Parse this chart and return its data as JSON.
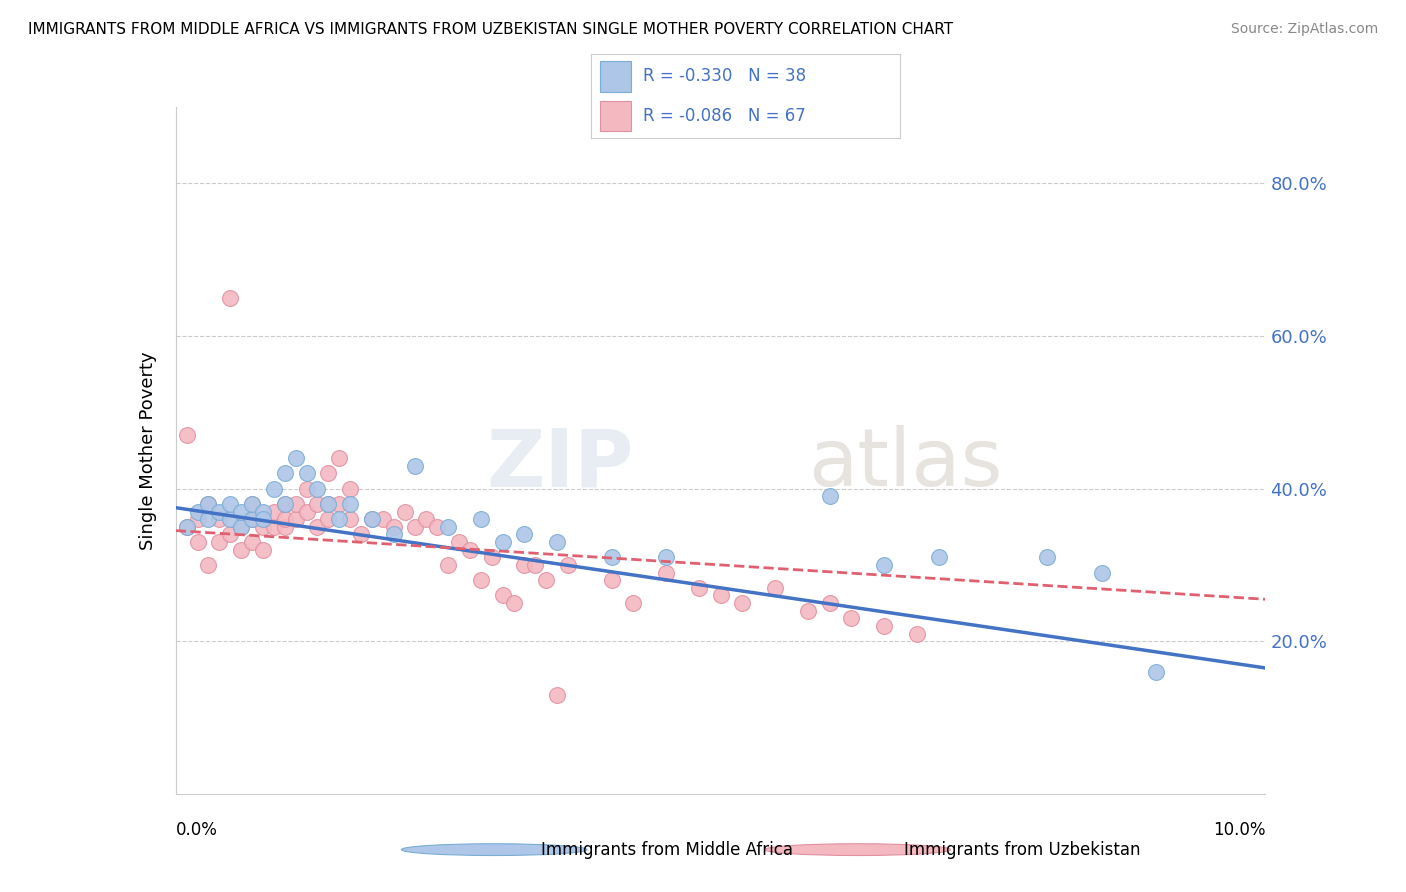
{
  "title": "IMMIGRANTS FROM MIDDLE AFRICA VS IMMIGRANTS FROM UZBEKISTAN SINGLE MOTHER POVERTY CORRELATION CHART",
  "source": "Source: ZipAtlas.com",
  "ylabel": "Single Mother Poverty",
  "y_ticks": [
    0.2,
    0.4,
    0.6,
    0.8
  ],
  "y_tick_labels": [
    "20.0%",
    "40.0%",
    "60.0%",
    "80.0%"
  ],
  "xlim": [
    0.0,
    0.1
  ],
  "ylim": [
    0.0,
    0.9
  ],
  "series1_color": "#aec6e8",
  "series1_edge": "#7aadd4",
  "series1_line": "#4472c4",
  "series2_color": "#f4b8c1",
  "series2_edge": "#e090a0",
  "series2_line": "#e06070",
  "background_color": "#ffffff",
  "grid_color": "#cccccc",
  "blue_scatter_x": [
    0.001,
    0.002,
    0.003,
    0.003,
    0.004,
    0.005,
    0.005,
    0.006,
    0.006,
    0.007,
    0.007,
    0.008,
    0.008,
    0.009,
    0.01,
    0.01,
    0.011,
    0.012,
    0.013,
    0.014,
    0.015,
    0.016,
    0.018,
    0.02,
    0.022,
    0.025,
    0.028,
    0.03,
    0.032,
    0.035,
    0.04,
    0.045,
    0.06,
    0.065,
    0.07,
    0.08,
    0.085,
    0.09
  ],
  "blue_scatter_y": [
    0.35,
    0.37,
    0.36,
    0.38,
    0.37,
    0.36,
    0.38,
    0.35,
    0.37,
    0.36,
    0.38,
    0.37,
    0.36,
    0.4,
    0.38,
    0.42,
    0.44,
    0.42,
    0.4,
    0.38,
    0.36,
    0.38,
    0.36,
    0.34,
    0.43,
    0.35,
    0.36,
    0.33,
    0.34,
    0.33,
    0.31,
    0.31,
    0.39,
    0.3,
    0.31,
    0.31,
    0.29,
    0.16
  ],
  "pink_scatter_x": [
    0.001,
    0.001,
    0.002,
    0.002,
    0.003,
    0.003,
    0.004,
    0.004,
    0.005,
    0.005,
    0.006,
    0.006,
    0.007,
    0.007,
    0.007,
    0.008,
    0.008,
    0.009,
    0.009,
    0.01,
    0.01,
    0.01,
    0.011,
    0.011,
    0.012,
    0.012,
    0.013,
    0.013,
    0.014,
    0.014,
    0.014,
    0.015,
    0.015,
    0.016,
    0.016,
    0.017,
    0.018,
    0.019,
    0.02,
    0.021,
    0.022,
    0.023,
    0.024,
    0.025,
    0.026,
    0.027,
    0.028,
    0.029,
    0.03,
    0.031,
    0.032,
    0.033,
    0.034,
    0.035,
    0.036,
    0.04,
    0.042,
    0.045,
    0.048,
    0.05,
    0.052,
    0.055,
    0.058,
    0.06,
    0.062,
    0.065,
    0.068
  ],
  "pink_scatter_y": [
    0.35,
    0.47,
    0.33,
    0.36,
    0.3,
    0.38,
    0.33,
    0.36,
    0.65,
    0.34,
    0.32,
    0.35,
    0.33,
    0.36,
    0.38,
    0.32,
    0.35,
    0.35,
    0.37,
    0.35,
    0.36,
    0.38,
    0.36,
    0.38,
    0.37,
    0.4,
    0.35,
    0.38,
    0.36,
    0.38,
    0.42,
    0.38,
    0.44,
    0.36,
    0.4,
    0.34,
    0.36,
    0.36,
    0.35,
    0.37,
    0.35,
    0.36,
    0.35,
    0.3,
    0.33,
    0.32,
    0.28,
    0.31,
    0.26,
    0.25,
    0.3,
    0.3,
    0.28,
    0.13,
    0.3,
    0.28,
    0.25,
    0.29,
    0.27,
    0.26,
    0.25,
    0.27,
    0.24,
    0.25,
    0.23,
    0.22,
    0.21
  ]
}
